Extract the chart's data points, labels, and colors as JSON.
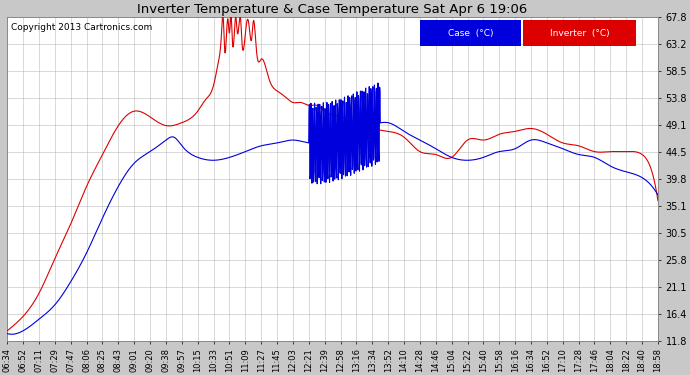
{
  "title": "Inverter Temperature & Case Temperature Sat Apr 6 19:06",
  "copyright": "Copyright 2013 Cartronics.com",
  "yticks": [
    11.8,
    16.4,
    21.1,
    25.8,
    30.5,
    35.1,
    39.8,
    44.5,
    49.1,
    53.8,
    58.5,
    63.2,
    67.8
  ],
  "ylim": [
    11.8,
    67.8
  ],
  "bg_color": "#c8c8c8",
  "plot_bg": "#ffffff",
  "grid_color": "#aaaaaa",
  "case_color": "#0000dd",
  "inverter_color": "#dd0000",
  "legend_case_label": "Case  (°C)",
  "legend_inverter_label": "Inverter  (°C)",
  "xtick_labels": [
    "06:34",
    "06:52",
    "07:11",
    "07:29",
    "07:47",
    "08:06",
    "08:25",
    "08:43",
    "09:01",
    "09:20",
    "09:38",
    "09:57",
    "10:15",
    "10:33",
    "10:51",
    "11:09",
    "11:27",
    "11:45",
    "12:03",
    "12:21",
    "12:39",
    "12:58",
    "13:16",
    "13:34",
    "13:52",
    "14:10",
    "14:28",
    "14:46",
    "15:04",
    "15:22",
    "15:40",
    "15:58",
    "16:16",
    "16:34",
    "16:52",
    "17:10",
    "17:28",
    "17:46",
    "18:04",
    "18:22",
    "18:40",
    "18:58"
  ]
}
